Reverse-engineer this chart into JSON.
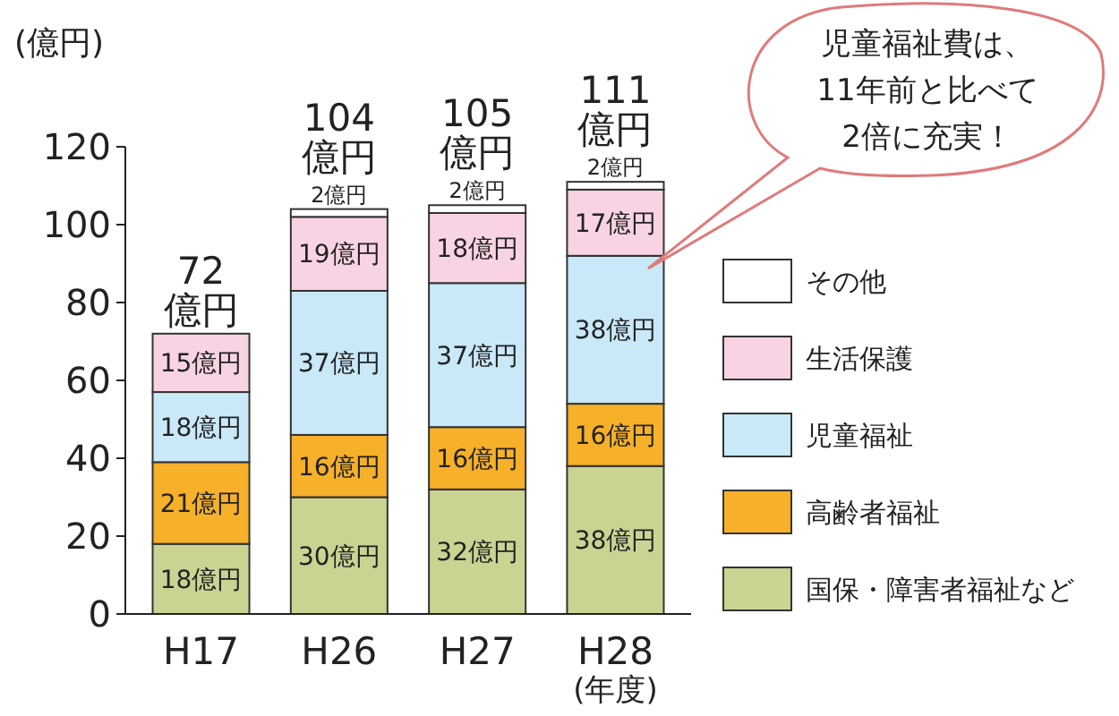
{
  "chart_data": {
    "type": "bar",
    "stacked": true,
    "ylabel": "(億円)",
    "xlabel": "(年度)",
    "categories": [
      "H17",
      "H26",
      "H27",
      "H28"
    ],
    "series": [
      {
        "name": "国保・障害者福祉など",
        "color": "#cbd393",
        "values": [
          18,
          30,
          32,
          38
        ],
        "value_labels": [
          "18億円",
          "30億円",
          "32億円",
          "38億円"
        ]
      },
      {
        "name": "高齢者福祉",
        "color": "#f6b02a",
        "values": [
          21,
          16,
          16,
          16
        ],
        "value_labels": [
          "21億円",
          "16億円",
          "16億円",
          "16億円"
        ]
      },
      {
        "name": "児童福祉",
        "color": "#c9e8f8",
        "values": [
          18,
          37,
          37,
          38
        ],
        "value_labels": [
          "18億円",
          "37億円",
          "37億円",
          "38億円"
        ]
      },
      {
        "name": "生活保護",
        "color": "#f8d3e3",
        "values": [
          15,
          19,
          18,
          17
        ],
        "value_labels": [
          "15億円",
          "19億円",
          "18億円",
          "17億円"
        ]
      },
      {
        "name": "その他",
        "color": "#ffffff",
        "values": [
          null,
          2,
          2,
          2
        ],
        "value_labels": [
          null,
          "2億円",
          "2億円",
          "2億円"
        ]
      }
    ],
    "totals": [
      "72\n億円",
      "104\n億円",
      "105\n億円",
      "111\n億円"
    ],
    "ylim": [
      0,
      120
    ],
    "yticks": [
      0,
      20,
      40,
      60,
      80,
      100,
      120
    ],
    "legend": "right",
    "annotations": [
      "児童福祉費は、\n11年前と比べて\n2倍に充実！"
    ]
  }
}
